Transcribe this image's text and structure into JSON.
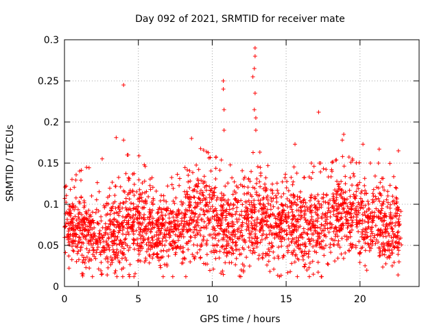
{
  "chart_data": {
    "type": "scatter",
    "title": "Day 092 of 2021, SRMTID for receiver mate",
    "xlabel": "GPS time / hours",
    "ylabel": "SRMTID / TECUs",
    "xlim": [
      0,
      24
    ],
    "ylim": [
      0,
      0.3
    ],
    "xticks": [
      0,
      5,
      10,
      15,
      20
    ],
    "xtick_labels": [
      "0",
      "5",
      "10",
      "15",
      "20"
    ],
    "yticks": [
      0,
      0.05,
      0.1,
      0.15,
      0.2,
      0.25,
      0.3
    ],
    "ytick_labels": [
      "0",
      "0.05",
      "0.1",
      "0.15",
      "0.2",
      "0.25",
      "0.3"
    ],
    "grid": true,
    "marker": "plus",
    "marker_color": "#ff0000",
    "data_coverage_hours": [
      0,
      22.8
    ],
    "point_count_estimate": 2600,
    "outliers": [
      {
        "x": 4.0,
        "y": 0.245
      },
      {
        "x": 4.0,
        "y": 0.178
      },
      {
        "x": 3.5,
        "y": 0.181
      },
      {
        "x": 8.6,
        "y": 0.18
      },
      {
        "x": 10.75,
        "y": 0.25
      },
      {
        "x": 10.75,
        "y": 0.24
      },
      {
        "x": 10.8,
        "y": 0.215
      },
      {
        "x": 10.8,
        "y": 0.19
      },
      {
        "x": 12.75,
        "y": 0.255
      },
      {
        "x": 12.9,
        "y": 0.29
      },
      {
        "x": 12.9,
        "y": 0.28
      },
      {
        "x": 12.85,
        "y": 0.265
      },
      {
        "x": 12.9,
        "y": 0.235
      },
      {
        "x": 12.85,
        "y": 0.215
      },
      {
        "x": 12.95,
        "y": 0.205
      },
      {
        "x": 12.95,
        "y": 0.19
      },
      {
        "x": 17.2,
        "y": 0.212
      },
      {
        "x": 15.6,
        "y": 0.173
      },
      {
        "x": 18.9,
        "y": 0.185
      },
      {
        "x": 18.8,
        "y": 0.178
      },
      {
        "x": 20.2,
        "y": 0.173
      },
      {
        "x": 21.3,
        "y": 0.167
      },
      {
        "x": 22.6,
        "y": 0.165
      }
    ],
    "envelope": [
      {
        "x": 0,
        "median": 0.07,
        "spread": 0.022,
        "max": 0.12
      },
      {
        "x": 1,
        "median": 0.068,
        "spread": 0.022,
        "max": 0.14
      },
      {
        "x": 2,
        "median": 0.06,
        "spread": 0.022,
        "max": 0.15
      },
      {
        "x": 3,
        "median": 0.062,
        "spread": 0.024,
        "max": 0.165
      },
      {
        "x": 4,
        "median": 0.07,
        "spread": 0.026,
        "max": 0.16
      },
      {
        "x": 5,
        "median": 0.072,
        "spread": 0.025,
        "max": 0.16
      },
      {
        "x": 6,
        "median": 0.062,
        "spread": 0.022,
        "max": 0.13
      },
      {
        "x": 7,
        "median": 0.068,
        "spread": 0.022,
        "max": 0.13
      },
      {
        "x": 8,
        "median": 0.072,
        "spread": 0.022,
        "max": 0.14
      },
      {
        "x": 9,
        "median": 0.085,
        "spread": 0.027,
        "max": 0.17
      },
      {
        "x": 10,
        "median": 0.088,
        "spread": 0.028,
        "max": 0.16
      },
      {
        "x": 11,
        "median": 0.072,
        "spread": 0.025,
        "max": 0.15
      },
      {
        "x": 12,
        "median": 0.07,
        "spread": 0.024,
        "max": 0.14
      },
      {
        "x": 13,
        "median": 0.085,
        "spread": 0.03,
        "max": 0.17
      },
      {
        "x": 14,
        "median": 0.075,
        "spread": 0.024,
        "max": 0.14
      },
      {
        "x": 15,
        "median": 0.075,
        "spread": 0.024,
        "max": 0.14
      },
      {
        "x": 16,
        "median": 0.07,
        "spread": 0.024,
        "max": 0.15
      },
      {
        "x": 17,
        "median": 0.07,
        "spread": 0.025,
        "max": 0.15
      },
      {
        "x": 18,
        "median": 0.08,
        "spread": 0.026,
        "max": 0.15
      },
      {
        "x": 19,
        "median": 0.09,
        "spread": 0.027,
        "max": 0.16
      },
      {
        "x": 20,
        "median": 0.082,
        "spread": 0.025,
        "max": 0.15
      },
      {
        "x": 21,
        "median": 0.078,
        "spread": 0.025,
        "max": 0.15
      },
      {
        "x": 22,
        "median": 0.07,
        "spread": 0.025,
        "max": 0.15
      },
      {
        "x": 22.8,
        "median": 0.065,
        "spread": 0.022,
        "max": 0.14
      }
    ]
  }
}
